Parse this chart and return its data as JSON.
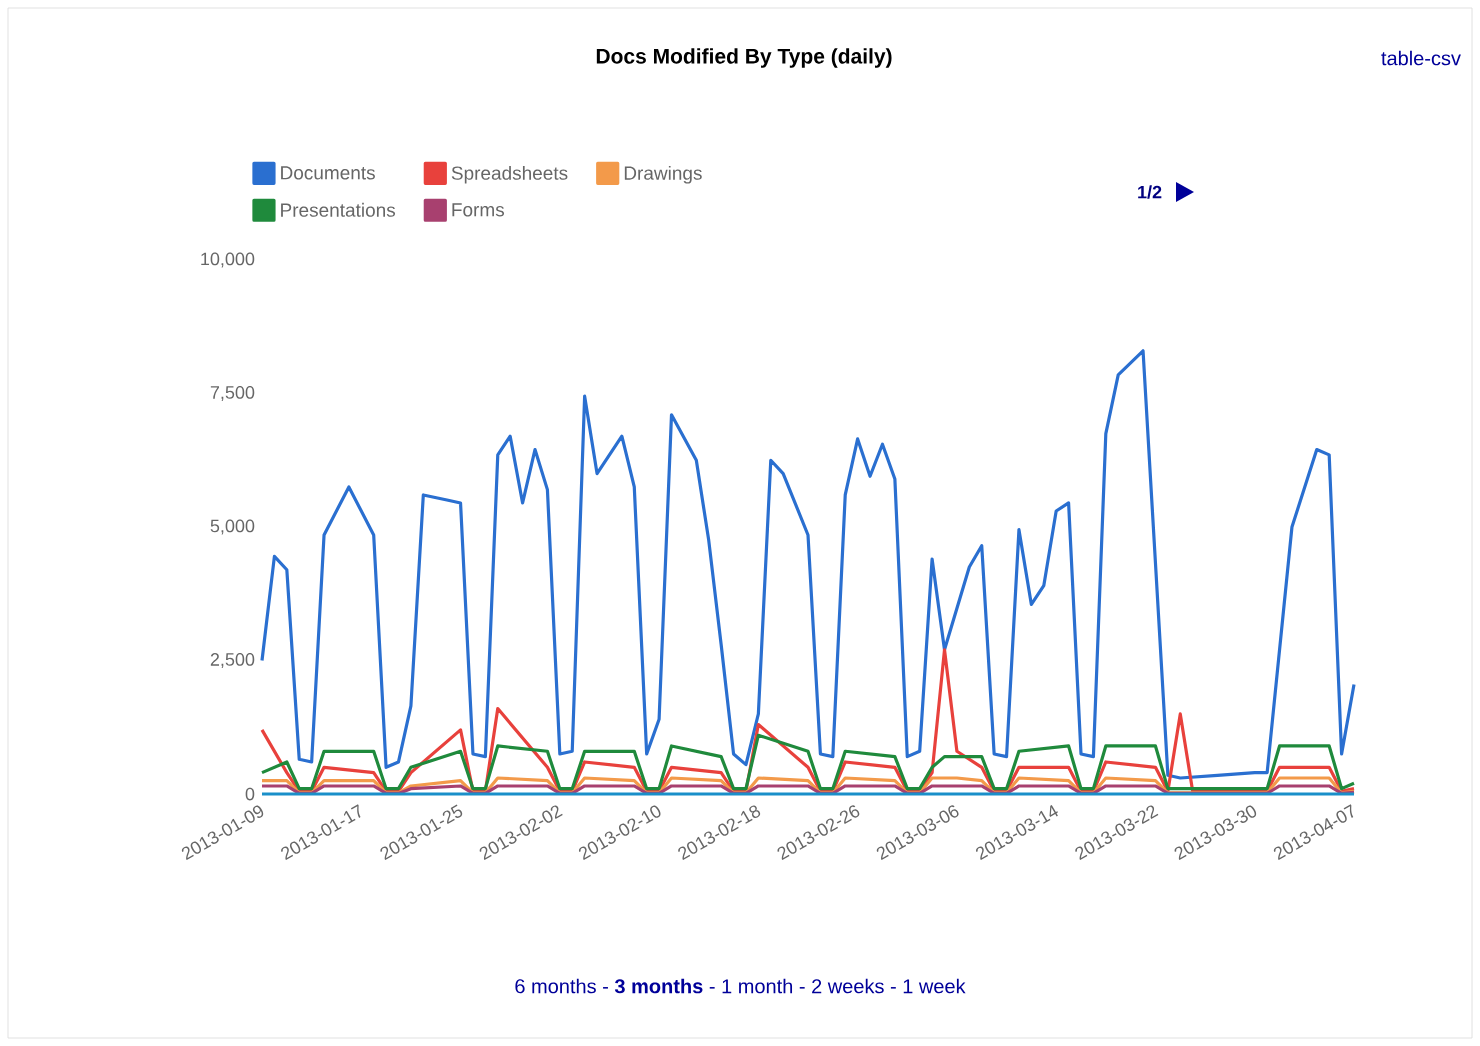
{
  "chart_data": {
    "type": "line",
    "title": "Docs Modified By Type (daily)",
    "x": [
      "2013-01-09",
      "2013-01-11",
      "2013-01-12",
      "2013-01-13",
      "2013-01-14",
      "2013-01-18",
      "2013-01-19",
      "2013-01-20",
      "2013-01-21",
      "2013-01-25",
      "2013-01-26",
      "2013-01-27",
      "2013-01-28",
      "2013-02-01",
      "2013-02-02",
      "2013-02-03",
      "2013-02-04",
      "2013-02-08",
      "2013-02-09",
      "2013-02-10",
      "2013-02-11",
      "2013-02-15",
      "2013-02-16",
      "2013-02-17",
      "2013-02-18",
      "2013-02-22",
      "2013-02-23",
      "2013-02-24",
      "2013-02-25",
      "2013-03-01",
      "2013-03-02",
      "2013-03-03",
      "2013-03-04",
      "2013-03-05",
      "2013-03-06",
      "2013-03-08",
      "2013-03-09",
      "2013-03-10",
      "2013-03-11",
      "2013-03-15",
      "2013-03-16",
      "2013-03-17",
      "2013-03-18",
      "2013-03-22",
      "2013-03-23",
      "2013-03-24",
      "2013-03-25",
      "2013-03-29",
      "2013-03-30",
      "2013-03-31",
      "2013-04-01",
      "2013-04-05",
      "2013-04-06",
      "2013-04-07"
    ],
    "series": [
      {
        "name": "Documents",
        "color": "#2a6fd0",
        "x": [
          "2013-01-09",
          "2013-01-10",
          "2013-01-11",
          "2013-01-12",
          "2013-01-13",
          "2013-01-14",
          "2013-01-16",
          "2013-01-18",
          "2013-01-19",
          "2013-01-20",
          "2013-01-21",
          "2013-01-22",
          "2013-01-24",
          "2013-01-25",
          "2013-01-26",
          "2013-01-27",
          "2013-01-28",
          "2013-01-29",
          "2013-01-30",
          "2013-01-31",
          "2013-02-01",
          "2013-02-02",
          "2013-02-03",
          "2013-02-04",
          "2013-02-05",
          "2013-02-07",
          "2013-02-08",
          "2013-02-09",
          "2013-02-10",
          "2013-02-11",
          "2013-02-13",
          "2013-02-14",
          "2013-02-15",
          "2013-02-16",
          "2013-02-17",
          "2013-02-18",
          "2013-02-19",
          "2013-02-20",
          "2013-02-22",
          "2013-02-23",
          "2013-02-24",
          "2013-02-25",
          "2013-02-26",
          "2013-02-27",
          "2013-02-28",
          "2013-03-01",
          "2013-03-02",
          "2013-03-03",
          "2013-03-04",
          "2013-03-05",
          "2013-03-07",
          "2013-03-08",
          "2013-03-09",
          "2013-03-10",
          "2013-03-11",
          "2013-03-12",
          "2013-03-13",
          "2013-03-14",
          "2013-03-15",
          "2013-03-16",
          "2013-03-17",
          "2013-03-18",
          "2013-03-19",
          "2013-03-21",
          "2013-03-23",
          "2013-03-24",
          "2013-03-27",
          "2013-03-30",
          "2013-03-31",
          "2013-04-02",
          "2013-04-04",
          "2013-04-05",
          "2013-04-06",
          "2013-04-07"
        ],
        "values": [
          2500,
          4450,
          4200,
          650,
          600,
          4850,
          5750,
          4850,
          500,
          600,
          1650,
          5600,
          5500,
          5450,
          750,
          700,
          6350,
          6700,
          5450,
          6450,
          5700,
          750,
          800,
          7450,
          6000,
          6700,
          5750,
          750,
          1400,
          7100,
          6250,
          4750,
          2800,
          750,
          550,
          1500,
          6250,
          6000,
          4850,
          750,
          700,
          5600,
          6650,
          5950,
          6550,
          5900,
          700,
          800,
          4400,
          2700,
          4250,
          4650,
          750,
          700,
          4950,
          3550,
          3900,
          5300,
          5450,
          750,
          700,
          6750,
          7850,
          8300,
          350,
          300,
          350,
          400,
          400,
          5000,
          6450,
          6350,
          750,
          2050
        ]
      },
      {
        "name": "Spreadsheets",
        "color": "#e8413c",
        "values": [
          1200,
          400,
          50,
          50,
          500,
          400,
          50,
          50,
          400,
          1200,
          50,
          50,
          1600,
          500,
          50,
          50,
          600,
          500,
          50,
          50,
          500,
          400,
          50,
          50,
          1300,
          500,
          50,
          50,
          600,
          500,
          50,
          50,
          400,
          2700,
          800,
          500,
          50,
          50,
          500,
          500,
          50,
          50,
          600,
          500,
          50,
          1500,
          50,
          50,
          50,
          50,
          500,
          500,
          50,
          100
        ]
      },
      {
        "name": "Drawings",
        "color": "#f39a4a",
        "values": [
          250,
          250,
          20,
          20,
          250,
          250,
          20,
          20,
          150,
          250,
          20,
          20,
          300,
          250,
          20,
          20,
          300,
          250,
          20,
          20,
          300,
          250,
          20,
          20,
          300,
          250,
          20,
          20,
          300,
          250,
          20,
          20,
          300,
          300,
          300,
          250,
          20,
          20,
          300,
          250,
          20,
          20,
          300,
          250,
          20,
          20,
          20,
          20,
          20,
          20,
          300,
          300,
          20,
          50
        ]
      },
      {
        "name": "Presentations",
        "color": "#1f8a3c",
        "values": [
          400,
          600,
          100,
          100,
          800,
          800,
          100,
          100,
          500,
          800,
          100,
          100,
          900,
          800,
          100,
          100,
          800,
          800,
          100,
          100,
          900,
          700,
          100,
          100,
          1100,
          800,
          100,
          100,
          800,
          700,
          100,
          100,
          500,
          700,
          700,
          700,
          100,
          100,
          800,
          900,
          100,
          100,
          900,
          900,
          100,
          100,
          100,
          100,
          100,
          100,
          900,
          900,
          100,
          200
        ]
      },
      {
        "name": "Forms",
        "color": "#a8406f",
        "values": [
          150,
          150,
          10,
          10,
          150,
          150,
          10,
          10,
          100,
          150,
          10,
          10,
          150,
          150,
          10,
          10,
          150,
          150,
          10,
          10,
          150,
          150,
          10,
          10,
          150,
          150,
          10,
          10,
          150,
          150,
          10,
          10,
          150,
          150,
          150,
          150,
          10,
          10,
          150,
          150,
          10,
          10,
          150,
          150,
          10,
          10,
          10,
          10,
          10,
          10,
          150,
          150,
          10,
          30
        ]
      },
      {
        "color": "#1a8fc9",
        "x": [
          "2013-01-09",
          "2013-04-07"
        ],
        "values": [
          0,
          0
        ]
      }
    ],
    "xlim": [
      "2013-01-09",
      "2013-04-07"
    ],
    "xticks": [
      "2013-01-09",
      "2013-01-17",
      "2013-01-25",
      "2013-02-02",
      "2013-02-10",
      "2013-02-18",
      "2013-02-26",
      "2013-03-06",
      "2013-03-14",
      "2013-03-22",
      "2013-03-30",
      "2013-04-07"
    ],
    "ylim": [
      0,
      10000
    ],
    "yticks": [
      0,
      {
        "value": 2500,
        "label": "2,500"
      },
      {
        "value": 5000,
        "label": "5,000"
      },
      {
        "value": 7500,
        "label": "7,500"
      },
      {
        "value": 10000,
        "label": "10,000"
      }
    ],
    "legend": "top",
    "annotations": [
      "table-csv",
      "1/2",
      "6 months - **3 months** - 1 month - 2 weeks - 1 week"
    ]
  }
}
